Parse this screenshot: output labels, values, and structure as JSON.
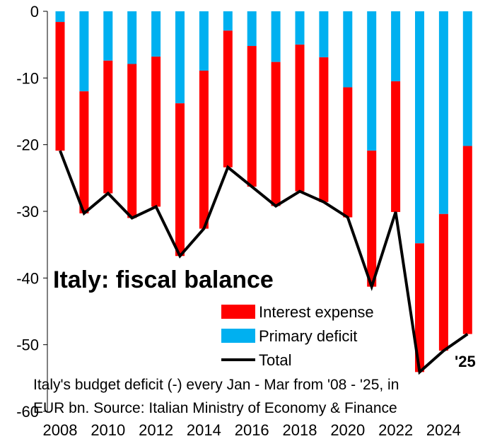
{
  "chart_data": {
    "type": "bar",
    "stacked": true,
    "title": "Italy: fiscal balance",
    "note_lines": [
      "Italy's budget deficit (-) every Jan - Mar from '08 - '25, in",
      "EUR bn. Source: Italian Ministry of Economy & Finance"
    ],
    "annotation": "'25",
    "x": [
      2008,
      2009,
      2010,
      2011,
      2012,
      2013,
      2014,
      2015,
      2016,
      2017,
      2018,
      2019,
      2020,
      2021,
      2022,
      2023,
      2024,
      2025
    ],
    "x_tick_labels": [
      "2008",
      "2010",
      "2012",
      "2014",
      "2016",
      "2018",
      "2020",
      "2022",
      "2024"
    ],
    "y_ticks": [
      0,
      -10,
      -20,
      -30,
      -40,
      -50,
      -60
    ],
    "ylim": [
      -60,
      0
    ],
    "series": [
      {
        "name": "Interest expense",
        "color": "#ff0000",
        "kind": "bar",
        "values": [
          -19.3,
          -18.3,
          -19.9,
          -23.1,
          -22.5,
          -22.9,
          -23.7,
          -20.5,
          -21.1,
          -21.6,
          -22.0,
          -21.7,
          -19.5,
          -20.4,
          -19.6,
          -19.3,
          -20.5,
          -28.2
        ]
      },
      {
        "name": "Primary deficit",
        "color": "#00b0f0",
        "kind": "bar",
        "values": [
          -1.6,
          -12.0,
          -7.4,
          -7.9,
          -6.8,
          -13.8,
          -8.9,
          -2.9,
          -5.2,
          -7.6,
          -5.0,
          -6.9,
          -11.4,
          -20.9,
          -10.5,
          -34.8,
          -30.4,
          -20.2
        ]
      },
      {
        "name": "Total",
        "color": "#000000",
        "kind": "line",
        "values": [
          -20.9,
          -30.3,
          -27.3,
          -31.0,
          -29.3,
          -36.7,
          -32.6,
          -23.4,
          -26.3,
          -29.2,
          -27.0,
          -28.6,
          -30.9,
          -41.3,
          -30.1,
          -54.1,
          -50.9,
          -48.4
        ]
      }
    ]
  }
}
